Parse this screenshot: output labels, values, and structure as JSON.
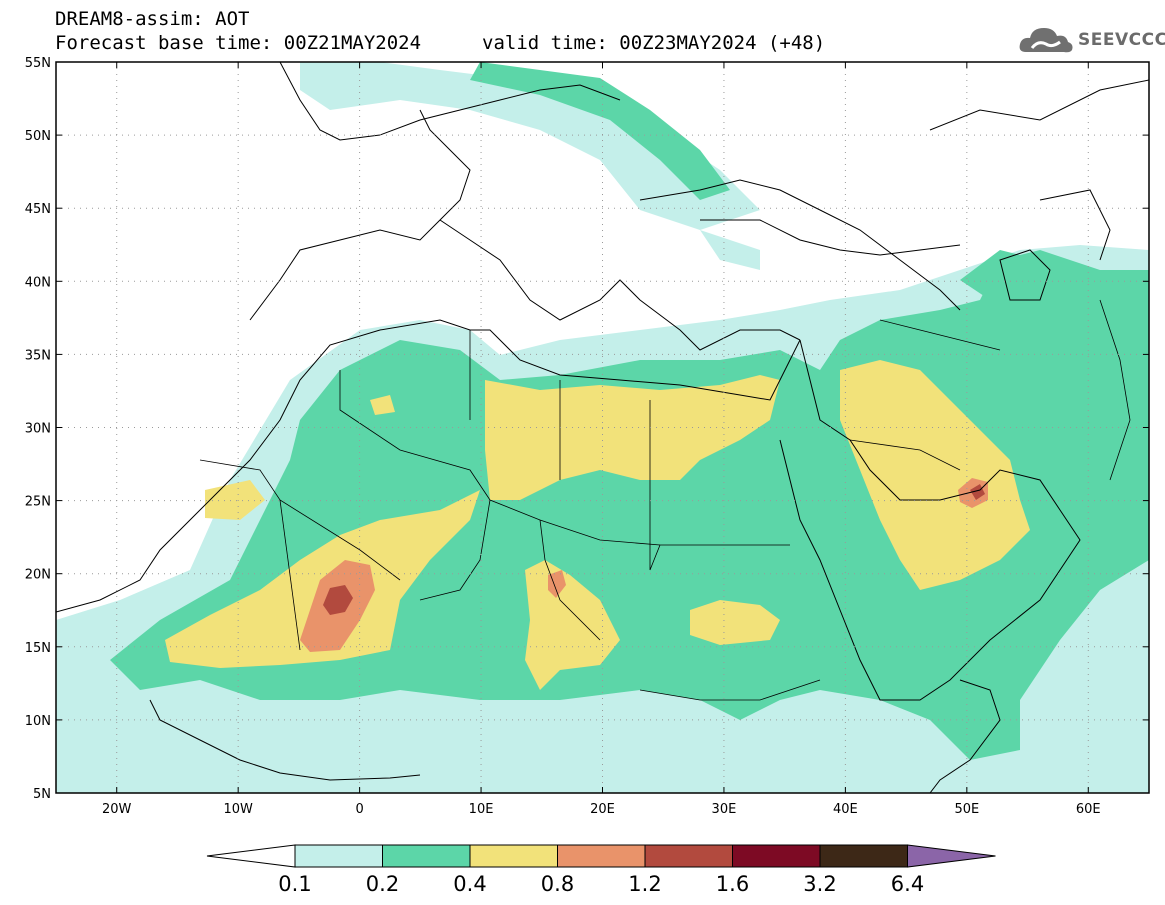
{
  "header": {
    "line1": "DREAM8-assim: AOT",
    "line2": "Forecast base time: 00Z21MAY2024",
    "valid": "valid time: 00Z23MAY2024 (+48)",
    "logo_text": "SEEVCCC"
  },
  "map": {
    "lon_range": [
      -25,
      65
    ],
    "lat_range": [
      5,
      55
    ],
    "lat_ticks": [
      {
        "value": 55,
        "label": "55N"
      },
      {
        "value": 50,
        "label": "50N"
      },
      {
        "value": 45,
        "label": "45N"
      },
      {
        "value": 40,
        "label": "40N"
      },
      {
        "value": 35,
        "label": "35N"
      },
      {
        "value": 30,
        "label": "30N"
      },
      {
        "value": 25,
        "label": "25N"
      },
      {
        "value": 20,
        "label": "20N"
      },
      {
        "value": 15,
        "label": "15N"
      },
      {
        "value": 10,
        "label": "10N"
      },
      {
        "value": 5,
        "label": "5N"
      }
    ],
    "lon_ticks": [
      {
        "value": -20,
        "label": "20W"
      },
      {
        "value": -10,
        "label": "10W"
      },
      {
        "value": 0,
        "label": "0"
      },
      {
        "value": 10,
        "label": "10E"
      },
      {
        "value": 20,
        "label": "20E"
      },
      {
        "value": 30,
        "label": "30E"
      },
      {
        "value": 40,
        "label": "40E"
      },
      {
        "value": 50,
        "label": "50E"
      },
      {
        "value": 60,
        "label": "60E"
      }
    ],
    "grid": true
  },
  "colorbar": {
    "levels": [
      "0.1",
      "0.2",
      "0.4",
      "0.8",
      "1.2",
      "1.6",
      "3.2",
      "6.4"
    ],
    "colors": [
      "#ffffff",
      "#c4efea",
      "#5cd6a8",
      "#f2e27a",
      "#e9936a",
      "#b24a3e",
      "#7d0a24",
      "#3d2817",
      "#8b65a8"
    ]
  }
}
